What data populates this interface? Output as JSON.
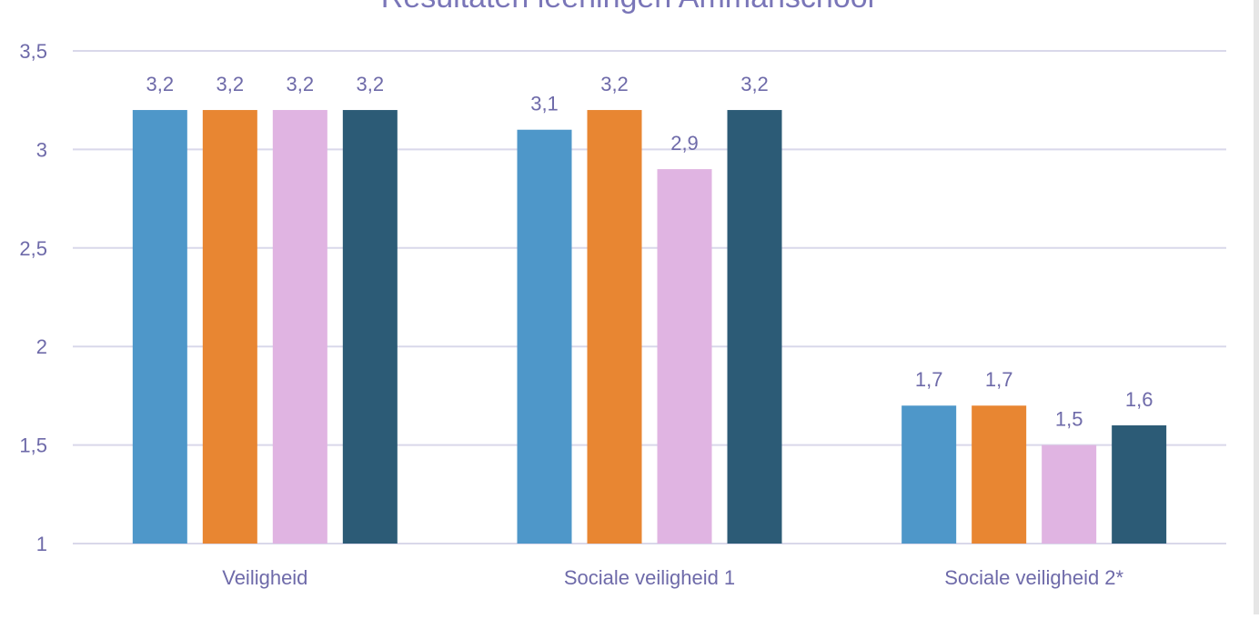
{
  "chart_data": {
    "type": "bar",
    "title": "Resultaten leerlingen Ammanschool",
    "categories": [
      "Veiligheid",
      "Sociale veiligheid 1",
      "Sociale veiligheid 2*"
    ],
    "series": [
      {
        "values": [
          3.2,
          3.1,
          1.7
        ],
        "labels": [
          "3,2",
          "3,1",
          "1,7"
        ],
        "color": "#4e97c9"
      },
      {
        "values": [
          3.2,
          3.2,
          1.7
        ],
        "labels": [
          "3,2",
          "3,2",
          "1,7"
        ],
        "color": "#e88632"
      },
      {
        "values": [
          3.2,
          2.9,
          1.5
        ],
        "labels": [
          "3,2",
          "2,9",
          "1,5"
        ],
        "color": "#e0b4e2"
      },
      {
        "values": [
          3.2,
          3.2,
          1.6
        ],
        "labels": [
          "3,2",
          "3,2",
          "1,6"
        ],
        "color": "#2c5b76"
      }
    ],
    "ylim": [
      1,
      3.5
    ],
    "yticks": [
      {
        "value": 3.5,
        "label": "3,5"
      },
      {
        "value": 3,
        "label": "3"
      },
      {
        "value": 2.5,
        "label": "2,5"
      },
      {
        "value": 2,
        "label": "2"
      },
      {
        "value": 1.5,
        "label": "1,5"
      },
      {
        "value": 1,
        "label": "1"
      }
    ],
    "grid": true,
    "legend": "none"
  }
}
